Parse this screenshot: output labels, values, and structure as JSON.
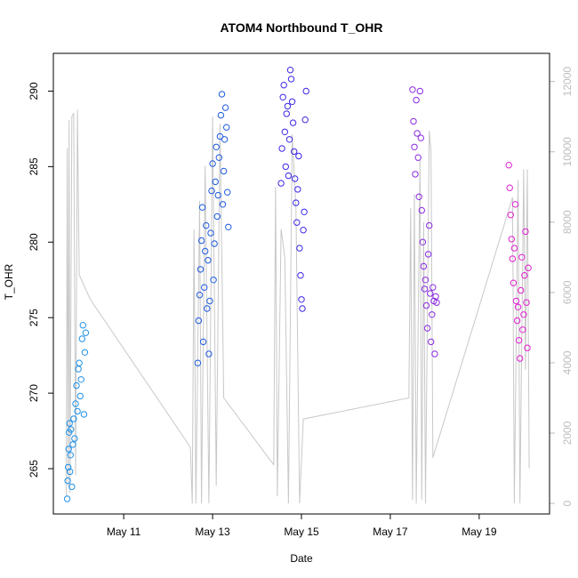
{
  "chart_data": {
    "type": "scatter",
    "title": "ATOM4 Northbound T_OHR",
    "xlabel": "Date",
    "ylabel": "T_OHR",
    "x_unit": "date",
    "xlim": [
      "2024-05-09T10:00",
      "2024-05-20T14:00"
    ],
    "ylim": [
      262.0,
      292.5
    ],
    "x_ticks": [
      {
        "label": "May 11",
        "date": "2024-05-11T00:00"
      },
      {
        "label": "May 13",
        "date": "2024-05-13T00:00"
      },
      {
        "label": "May 15",
        "date": "2024-05-15T00:00"
      },
      {
        "label": "May 17",
        "date": "2024-05-17T00:00"
      },
      {
        "label": "May 19",
        "date": "2024-05-19T00:00"
      }
    ],
    "y_ticks": [
      265,
      270,
      275,
      280,
      285,
      290
    ],
    "y2_ticks": [
      0,
      2000,
      4000,
      6000,
      8000,
      10000,
      12000
    ],
    "y2lim": [
      -300,
      12800
    ],
    "grid": false,
    "series": [
      {
        "color": "#1E90E8",
        "points": [
          [
            "2024-05-09T17:30",
            263.0
          ],
          [
            "2024-05-09T17:45",
            264.2
          ],
          [
            "2024-05-09T18:00",
            265.1
          ],
          [
            "2024-05-09T18:15",
            266.3
          ],
          [
            "2024-05-09T18:30",
            267.4
          ],
          [
            "2024-05-09T18:45",
            268.0
          ],
          [
            "2024-05-09T19:00",
            264.8
          ],
          [
            "2024-05-09T19:15",
            265.9
          ],
          [
            "2024-05-09T19:30",
            267.6
          ],
          [
            "2024-05-09T20:00",
            263.8
          ],
          [
            "2024-05-09T20:30",
            266.6
          ],
          [
            "2024-05-09T21:00",
            268.3
          ],
          [
            "2024-05-09T21:30",
            267.0
          ],
          [
            "2024-05-09T22:00",
            269.3
          ],
          [
            "2024-05-09T22:30",
            270.5
          ],
          [
            "2024-05-09T23:00",
            268.8
          ],
          [
            "2024-05-09T23:30",
            271.6
          ],
          [
            "2024-05-10T00:00",
            272.0
          ],
          [
            "2024-05-10T00:30",
            269.8
          ],
          [
            "2024-05-10T01:00",
            270.9
          ],
          [
            "2024-05-10T01:30",
            273.6
          ],
          [
            "2024-05-10T02:00",
            274.5
          ],
          [
            "2024-05-10T02:30",
            268.6
          ],
          [
            "2024-05-10T03:00",
            272.7
          ],
          [
            "2024-05-10T03:30",
            274.0
          ]
        ]
      },
      {
        "color": "#1F5BE0",
        "points": [
          [
            "2024-05-12T16:00",
            272.0
          ],
          [
            "2024-05-12T16:30",
            274.8
          ],
          [
            "2024-05-12T17:00",
            276.5
          ],
          [
            "2024-05-12T17:30",
            278.2
          ],
          [
            "2024-05-12T18:00",
            280.1
          ],
          [
            "2024-05-12T18:30",
            282.3
          ],
          [
            "2024-05-12T19:00",
            273.4
          ],
          [
            "2024-05-12T19:30",
            277.0
          ],
          [
            "2024-05-12T20:00",
            279.4
          ],
          [
            "2024-05-12T20:30",
            281.1
          ],
          [
            "2024-05-12T21:00",
            275.6
          ],
          [
            "2024-05-12T21:30",
            278.8
          ],
          [
            "2024-05-12T22:00",
            272.6
          ],
          [
            "2024-05-12T22:30",
            276.1
          ],
          [
            "2024-05-12T23:00",
            280.6
          ],
          [
            "2024-05-12T23:30",
            283.4
          ],
          [
            "2024-05-13T00:00",
            285.2
          ],
          [
            "2024-05-13T00:30",
            277.5
          ],
          [
            "2024-05-13T01:00",
            279.9
          ],
          [
            "2024-05-13T01:30",
            284.0
          ],
          [
            "2024-05-13T02:00",
            286.3
          ],
          [
            "2024-05-13T02:30",
            281.7
          ],
          [
            "2024-05-13T03:00",
            283.1
          ],
          [
            "2024-05-13T03:30",
            285.6
          ],
          [
            "2024-05-13T04:00",
            287.0
          ],
          [
            "2024-05-13T04:30",
            288.4
          ],
          [
            "2024-05-13T05:00",
            289.8
          ],
          [
            "2024-05-13T05:30",
            282.5
          ],
          [
            "2024-05-13T06:00",
            284.7
          ],
          [
            "2024-05-13T06:30",
            286.8
          ],
          [
            "2024-05-13T07:00",
            288.9
          ],
          [
            "2024-05-13T07:30",
            287.6
          ],
          [
            "2024-05-13T08:00",
            283.3
          ],
          [
            "2024-05-13T08:30",
            281.0
          ]
        ]
      },
      {
        "color": "#3B27E5",
        "points": [
          [
            "2024-05-14T13:00",
            283.9
          ],
          [
            "2024-05-14T13:30",
            286.2
          ],
          [
            "2024-05-14T14:00",
            289.6
          ],
          [
            "2024-05-14T14:30",
            290.4
          ],
          [
            "2024-05-14T15:00",
            287.3
          ],
          [
            "2024-05-14T15:30",
            285.0
          ],
          [
            "2024-05-14T16:00",
            288.5
          ],
          [
            "2024-05-14T16:30",
            289.0
          ],
          [
            "2024-05-14T17:00",
            284.4
          ],
          [
            "2024-05-14T17:30",
            286.8
          ],
          [
            "2024-05-14T18:00",
            291.4
          ],
          [
            "2024-05-14T18:30",
            290.8
          ],
          [
            "2024-05-14T19:00",
            289.3
          ],
          [
            "2024-05-14T19:30",
            287.9
          ],
          [
            "2024-05-14T20:00",
            286.0
          ],
          [
            "2024-05-14T20:30",
            284.2
          ],
          [
            "2024-05-14T21:00",
            282.6
          ],
          [
            "2024-05-14T21:30",
            281.3
          ],
          [
            "2024-05-14T22:00",
            283.5
          ],
          [
            "2024-05-14T22:30",
            285.7
          ],
          [
            "2024-05-14T23:00",
            279.6
          ],
          [
            "2024-05-14T23:30",
            277.8
          ],
          [
            "2024-05-15T00:00",
            276.2
          ],
          [
            "2024-05-15T00:30",
            275.6
          ],
          [
            "2024-05-15T01:00",
            280.8
          ],
          [
            "2024-05-15T01:30",
            282.0
          ],
          [
            "2024-05-15T02:00",
            288.1
          ],
          [
            "2024-05-15T02:30",
            290.0
          ]
        ]
      },
      {
        "color": "#8A2BE2",
        "points": [
          [
            "2024-05-17T12:00",
            290.1
          ],
          [
            "2024-05-17T12:30",
            288.0
          ],
          [
            "2024-05-17T13:00",
            286.3
          ],
          [
            "2024-05-17T13:30",
            284.5
          ],
          [
            "2024-05-17T14:00",
            289.4
          ],
          [
            "2024-05-17T14:30",
            287.2
          ],
          [
            "2024-05-17T15:00",
            285.6
          ],
          [
            "2024-05-17T15:30",
            283.0
          ],
          [
            "2024-05-17T16:00",
            290.0
          ],
          [
            "2024-05-17T16:30",
            286.9
          ],
          [
            "2024-05-17T17:00",
            282.1
          ],
          [
            "2024-05-17T17:30",
            280.0
          ],
          [
            "2024-05-17T18:00",
            278.4
          ],
          [
            "2024-05-17T18:30",
            276.9
          ],
          [
            "2024-05-17T19:00",
            277.5
          ],
          [
            "2024-05-17T19:30",
            275.8
          ],
          [
            "2024-05-17T20:00",
            274.3
          ],
          [
            "2024-05-17T20:30",
            279.2
          ],
          [
            "2024-05-17T21:00",
            281.1
          ],
          [
            "2024-05-17T21:30",
            276.6
          ],
          [
            "2024-05-17T22:00",
            273.4
          ],
          [
            "2024-05-17T22:30",
            275.2
          ],
          [
            "2024-05-17T23:00",
            277.0
          ],
          [
            "2024-05-17T23:30",
            276.1
          ],
          [
            "2024-05-18T00:00",
            272.6
          ],
          [
            "2024-05-18T00:30",
            276.4
          ],
          [
            "2024-05-18T01:00",
            276.0
          ]
        ]
      },
      {
        "color": "#E11FD0",
        "points": [
          [
            "2024-05-19T16:00",
            285.1
          ],
          [
            "2024-05-19T16:30",
            283.6
          ],
          [
            "2024-05-19T17:00",
            281.8
          ],
          [
            "2024-05-19T17:30",
            280.2
          ],
          [
            "2024-05-19T18:00",
            278.9
          ],
          [
            "2024-05-19T18:30",
            277.3
          ],
          [
            "2024-05-19T19:00",
            279.6
          ],
          [
            "2024-05-19T19:30",
            282.5
          ],
          [
            "2024-05-19T20:00",
            276.1
          ],
          [
            "2024-05-19T20:30",
            274.8
          ],
          [
            "2024-05-19T21:00",
            275.7
          ],
          [
            "2024-05-19T21:30",
            273.5
          ],
          [
            "2024-05-19T22:00",
            272.3
          ],
          [
            "2024-05-19T22:30",
            276.8
          ],
          [
            "2024-05-19T23:00",
            279.0
          ],
          [
            "2024-05-19T23:30",
            274.2
          ],
          [
            "2024-05-20T00:00",
            275.2
          ],
          [
            "2024-05-20T00:30",
            277.8
          ],
          [
            "2024-05-20T01:00",
            280.7
          ],
          [
            "2024-05-20T01:30",
            276.0
          ],
          [
            "2024-05-20T02:00",
            273.0
          ],
          [
            "2024-05-20T02:30",
            278.3
          ]
        ]
      }
    ],
    "secondary_series": {
      "axis": "right",
      "color": "#c8c8c8",
      "type": "line",
      "points": [
        [
          "2024-05-09T17:00",
          200
        ],
        [
          "2024-05-09T17:30",
          10100
        ],
        [
          "2024-05-09T18:00",
          500
        ],
        [
          "2024-05-09T18:30",
          10900
        ],
        [
          "2024-05-09T19:00",
          300
        ],
        [
          "2024-05-09T20:00",
          11000
        ],
        [
          "2024-05-09T21:00",
          11100
        ],
        [
          "2024-05-09T22:00",
          800
        ],
        [
          "2024-05-09T23:00",
          11200
        ],
        [
          "2024-05-10T00:00",
          6500
        ],
        [
          "2024-05-10T06:00",
          5800
        ],
        [
          "2024-05-12T12:00",
          1600
        ],
        [
          "2024-05-12T13:00",
          0
        ],
        [
          "2024-05-12T14:00",
          7800
        ],
        [
          "2024-05-12T15:00",
          0
        ],
        [
          "2024-05-12T17:00",
          8600
        ],
        [
          "2024-05-12T18:00",
          0
        ],
        [
          "2024-05-12T20:00",
          9600
        ],
        [
          "2024-05-12T22:00",
          0
        ],
        [
          "2024-05-13T00:00",
          11000
        ],
        [
          "2024-05-13T02:00",
          500
        ],
        [
          "2024-05-13T04:00",
          10800
        ],
        [
          "2024-05-13T06:00",
          3000
        ],
        [
          "2024-05-14T09:00",
          1100
        ],
        [
          "2024-05-14T10:00",
          9000
        ],
        [
          "2024-05-14T11:00",
          200
        ],
        [
          "2024-05-14T13:00",
          7800
        ],
        [
          "2024-05-14T15:00",
          7000
        ],
        [
          "2024-05-14T17:00",
          0
        ],
        [
          "2024-05-14T19:00",
          10500
        ],
        [
          "2024-05-14T21:00",
          8400
        ],
        [
          "2024-05-14T23:00",
          0
        ],
        [
          "2024-05-15T01:00",
          2400
        ],
        [
          "2024-05-17T10:00",
          3000
        ],
        [
          "2024-05-17T11:00",
          8400
        ],
        [
          "2024-05-17T12:00",
          100
        ],
        [
          "2024-05-17T13:00",
          8800
        ],
        [
          "2024-05-17T14:00",
          0
        ],
        [
          "2024-05-17T16:00",
          9800
        ],
        [
          "2024-05-17T17:00",
          100
        ],
        [
          "2024-05-17T18:00",
          8000
        ],
        [
          "2024-05-17T19:00",
          0
        ],
        [
          "2024-05-17T21:00",
          10600
        ],
        [
          "2024-05-17T22:00",
          10000
        ],
        [
          "2024-05-17T23:00",
          1300
        ],
        [
          "2024-05-19T18:00",
          8700
        ],
        [
          "2024-05-19T19:00",
          0
        ],
        [
          "2024-05-19T21:00",
          9200
        ],
        [
          "2024-05-19T22:00",
          0
        ],
        [
          "2024-05-20T00:00",
          9500
        ],
        [
          "2024-05-20T01:00",
          3800
        ],
        [
          "2024-05-20T02:00",
          9500
        ],
        [
          "2024-05-20T03:00",
          1000
        ]
      ]
    }
  }
}
